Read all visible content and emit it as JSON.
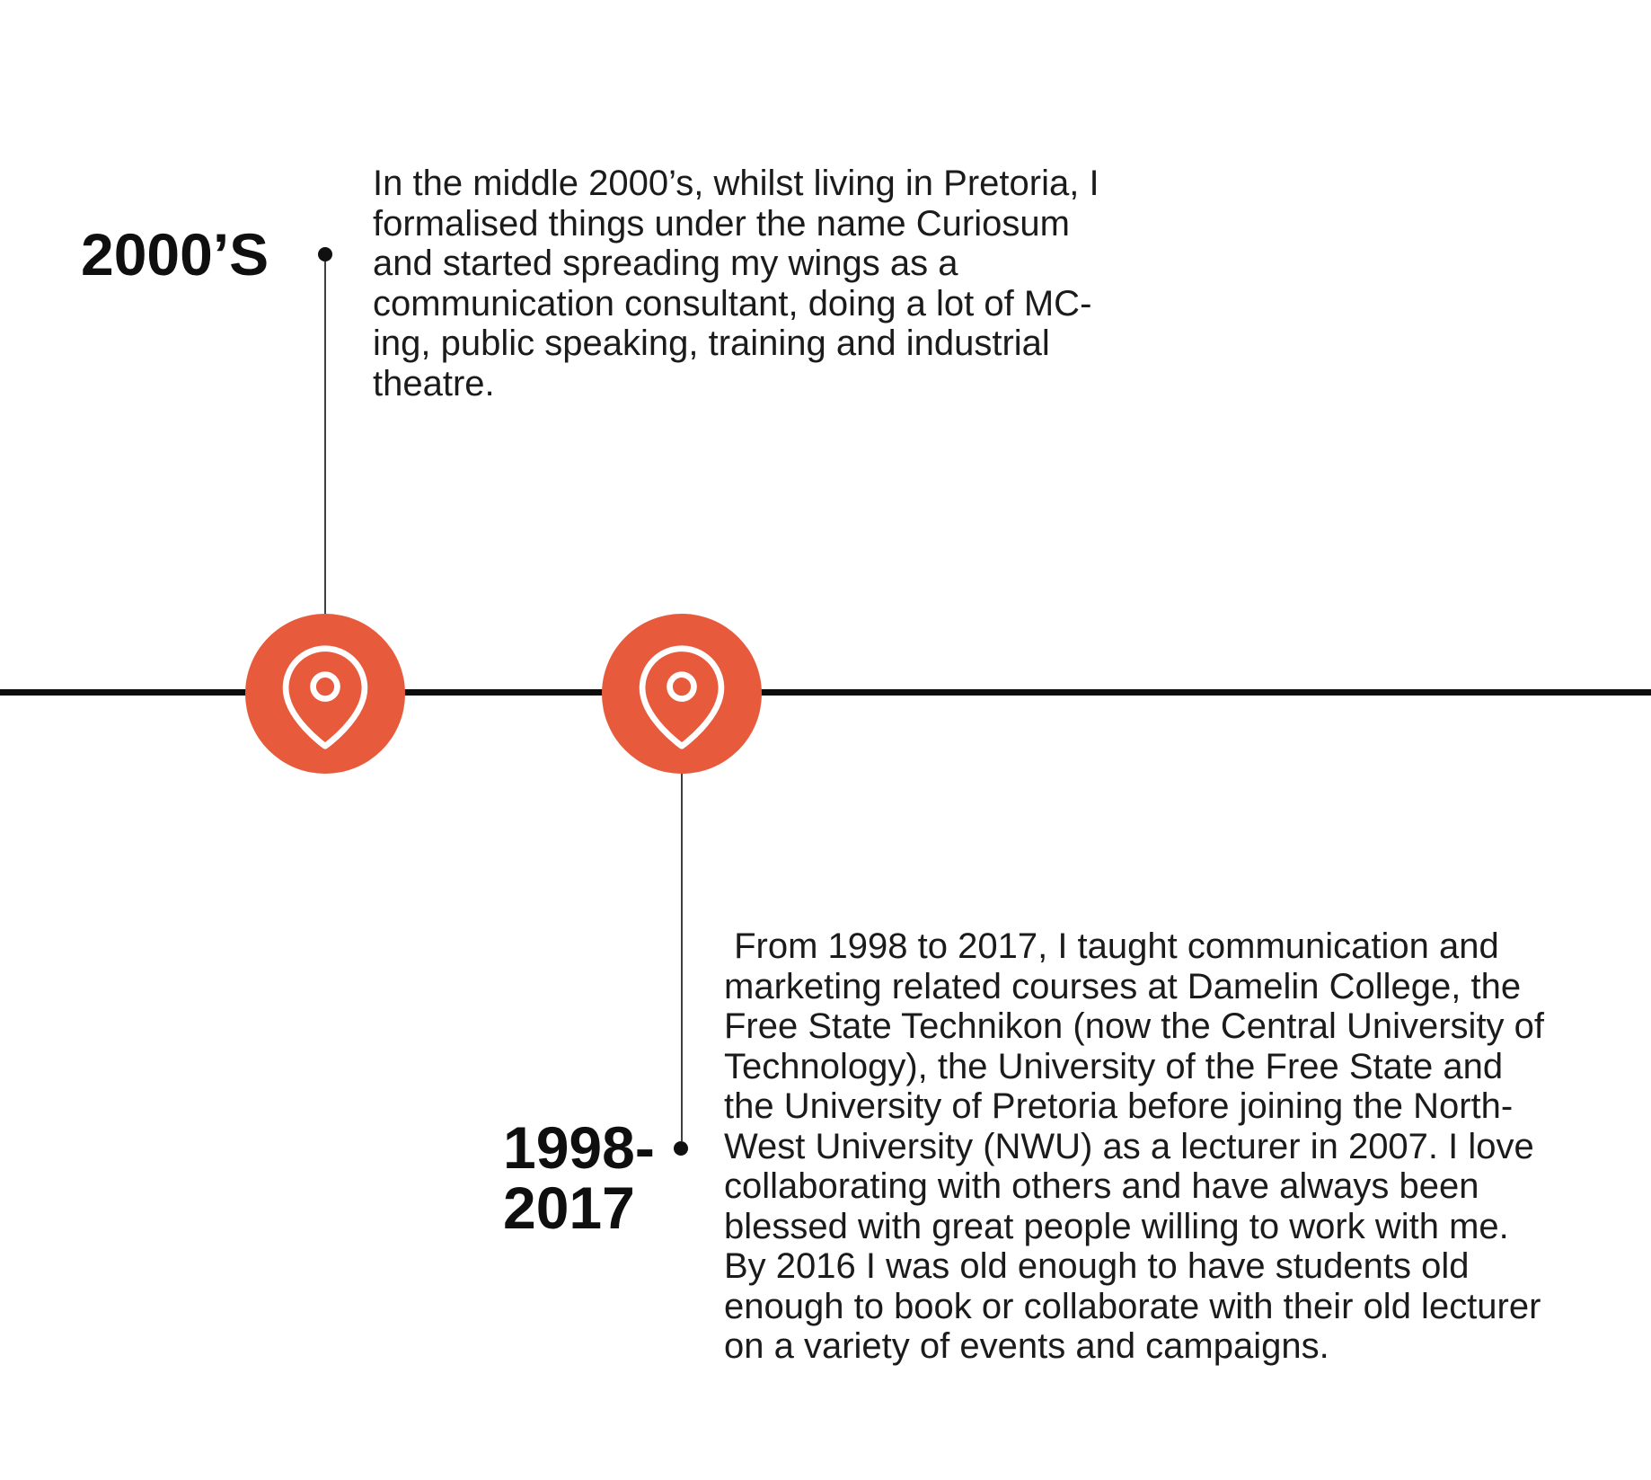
{
  "page": {
    "background_color": "#ffffff",
    "accent_color": "#e75a3c",
    "axis_color": "#0d0d0d",
    "text_color": "#1b1b1b"
  },
  "timeline": {
    "events": [
      {
        "id": "2000s",
        "label_lines": [
          "2000’S"
        ],
        "marker_icon": "map-pin-icon",
        "side": "above",
        "description_lines": [
          "In the middle 2000’s, whilst living in Pretoria, I",
          "formalised things under the name Curiosum",
          "and started spreading my wings as a",
          "communication consultant, doing a lot of MC-",
          "ing, public speaking, training and industrial",
          "theatre."
        ]
      },
      {
        "id": "1998-2017",
        "label_lines": [
          "1998-",
          "2017"
        ],
        "marker_icon": "map-pin-icon",
        "side": "below",
        "description_lines": [
          " From 1998 to 2017, I taught communication and",
          "marketing related courses at Damelin College, the",
          "Free State Technikon (now the Central University of",
          "Technology), the University of the Free State and",
          "the University of Pretoria before joining the North-",
          "West University (NWU) as a lecturer in 2007. I love",
          "collaborating with others and have always been",
          "blessed with great people willing to work with me.",
          "By 2016 I was old enough to have students old",
          "enough to book or collaborate with their old lecturer",
          "on a variety of events and campaigns."
        ]
      }
    ]
  }
}
